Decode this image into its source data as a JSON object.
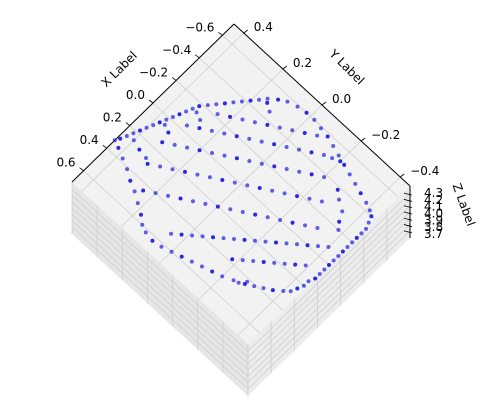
{
  "chart_data": {
    "type": "scatter",
    "projection": "3d",
    "title": "",
    "xlabel": "X Label",
    "ylabel": "Y Label",
    "zlabel": "Z Label",
    "xlim": [
      -0.7,
      0.7
    ],
    "ylim": [
      -0.45,
      0.45
    ],
    "zlim": [
      3.65,
      4.35
    ],
    "x_ticks": [
      "−0.6",
      "−0.4",
      "−0.2",
      "0.0",
      "0.2",
      "0.4",
      "0.6"
    ],
    "x_tick_values": [
      -0.6,
      -0.4,
      -0.2,
      0.0,
      0.2,
      0.4,
      0.6
    ],
    "y_ticks": [
      "0.4",
      "0.2",
      "0.0",
      "−0.2",
      "−0.4"
    ],
    "y_tick_values": [
      0.4,
      0.2,
      0.0,
      -0.2,
      -0.4
    ],
    "z_ticks": [
      "4.3",
      "4.2",
      "4.1",
      "4.0",
      "3.9",
      "3.8",
      "3.7"
    ],
    "z_tick_values": [
      4.3,
      4.2,
      4.1,
      4.0,
      3.9,
      3.8,
      3.7
    ],
    "grid": true,
    "marker_color": "#1f1fe0",
    "series": [
      {
        "points": [
          [
            0.35,
            0.42
          ],
          [
            0.38,
            0.38
          ],
          [
            0.41,
            0.34
          ],
          [
            0.45,
            0.3
          ],
          [
            0.48,
            0.26
          ],
          [
            0.52,
            0.22
          ],
          [
            0.56,
            0.18
          ],
          [
            0.6,
            0.15
          ],
          [
            0.62,
            0.12
          ],
          [
            0.63,
            0.08
          ],
          [
            0.62,
            0.04
          ],
          [
            0.6,
            0.0
          ],
          [
            0.58,
            -0.04
          ],
          [
            0.56,
            -0.08
          ],
          [
            0.54,
            -0.12
          ],
          [
            0.52,
            -0.16
          ],
          [
            0.5,
            -0.2
          ],
          [
            0.47,
            -0.24
          ],
          [
            0.44,
            -0.28
          ],
          [
            0.41,
            -0.31
          ],
          [
            0.38,
            -0.34
          ],
          [
            0.35,
            -0.37
          ],
          [
            0.31,
            -0.4
          ],
          [
            0.33,
            0.45
          ],
          [
            0.3,
            0.44
          ],
          [
            0.26,
            0.43
          ],
          [
            0.22,
            0.42
          ],
          [
            0.18,
            0.41
          ],
          [
            0.14,
            0.4
          ],
          [
            0.1,
            0.39
          ],
          [
            0.06,
            0.38
          ],
          [
            0.02,
            0.37
          ],
          [
            -0.02,
            0.36
          ],
          [
            -0.06,
            0.35
          ],
          [
            -0.1,
            0.34
          ],
          [
            -0.14,
            0.33
          ],
          [
            -0.18,
            0.32
          ],
          [
            -0.22,
            0.3
          ],
          [
            -0.26,
            0.28
          ],
          [
            -0.3,
            0.26
          ],
          [
            -0.34,
            0.24
          ],
          [
            -0.38,
            0.22
          ],
          [
            -0.42,
            0.2
          ],
          [
            -0.46,
            0.18
          ],
          [
            -0.5,
            0.16
          ],
          [
            -0.54,
            0.13
          ],
          [
            -0.57,
            0.1
          ],
          [
            -0.59,
            0.06
          ],
          [
            -0.6,
            0.02
          ],
          [
            -0.6,
            -0.02
          ],
          [
            -0.59,
            -0.06
          ],
          [
            -0.58,
            -0.1
          ],
          [
            -0.56,
            -0.14
          ],
          [
            -0.54,
            -0.18
          ],
          [
            -0.52,
            -0.22
          ],
          [
            -0.5,
            -0.26
          ],
          [
            -0.48,
            -0.3
          ],
          [
            -0.46,
            -0.34
          ],
          [
            -0.44,
            -0.38
          ],
          [
            -0.42,
            -0.41
          ],
          [
            -0.4,
            -0.43
          ],
          [
            -0.36,
            -0.44
          ],
          [
            0.28,
            -0.42
          ],
          [
            0.24,
            -0.43
          ],
          [
            0.2,
            -0.44
          ],
          [
            0.16,
            -0.44
          ],
          [
            0.12,
            -0.45
          ],
          [
            0.08,
            -0.45
          ],
          [
            0.04,
            -0.45
          ],
          [
            0.0,
            -0.45
          ],
          [
            -0.04,
            -0.45
          ],
          [
            -0.08,
            -0.45
          ],
          [
            -0.12,
            -0.45
          ],
          [
            -0.16,
            -0.45
          ],
          [
            -0.2,
            -0.45
          ],
          [
            -0.24,
            -0.45
          ],
          [
            -0.28,
            -0.45
          ],
          [
            -0.32,
            -0.45
          ],
          [
            0.44,
            0.24
          ],
          [
            0.4,
            0.2
          ],
          [
            0.36,
            0.16
          ],
          [
            0.32,
            0.12
          ],
          [
            0.28,
            0.08
          ],
          [
            0.24,
            0.04
          ],
          [
            0.2,
            0.0
          ],
          [
            0.16,
            -0.04
          ],
          [
            0.12,
            -0.08
          ],
          [
            0.08,
            -0.12
          ],
          [
            0.04,
            -0.16
          ],
          [
            0.0,
            -0.2
          ],
          [
            -0.04,
            -0.24
          ],
          [
            -0.08,
            -0.28
          ],
          [
            -0.12,
            -0.32
          ],
          [
            0.3,
            0.3
          ],
          [
            0.26,
            0.26
          ],
          [
            0.22,
            0.22
          ],
          [
            0.18,
            0.18
          ],
          [
            0.14,
            0.14
          ],
          [
            0.1,
            0.1
          ],
          [
            0.06,
            0.06
          ],
          [
            0.02,
            0.02
          ],
          [
            -0.02,
            -0.02
          ],
          [
            -0.06,
            -0.06
          ],
          [
            -0.1,
            -0.1
          ],
          [
            -0.14,
            -0.14
          ],
          [
            -0.18,
            -0.18
          ],
          [
            -0.22,
            -0.22
          ],
          [
            -0.26,
            -0.26
          ],
          [
            0.14,
            0.32
          ],
          [
            0.1,
            0.28
          ],
          [
            0.06,
            0.24
          ],
          [
            0.02,
            0.2
          ],
          [
            -0.02,
            0.16
          ],
          [
            -0.06,
            0.12
          ],
          [
            -0.1,
            0.08
          ],
          [
            -0.14,
            0.04
          ],
          [
            -0.18,
            0.0
          ],
          [
            -0.22,
            -0.04
          ],
          [
            -0.26,
            -0.08
          ],
          [
            -0.3,
            -0.12
          ],
          [
            -0.34,
            -0.16
          ],
          [
            -0.38,
            -0.2
          ],
          [
            -0.04,
            0.3
          ],
          [
            -0.08,
            0.26
          ],
          [
            -0.12,
            0.22
          ],
          [
            -0.16,
            0.18
          ],
          [
            -0.2,
            0.14
          ],
          [
            -0.24,
            0.1
          ],
          [
            -0.28,
            0.06
          ],
          [
            -0.32,
            0.02
          ],
          [
            -0.36,
            -0.02
          ],
          [
            -0.4,
            -0.06
          ],
          [
            -0.44,
            -0.1
          ],
          [
            -0.48,
            -0.14
          ],
          [
            -0.22,
            0.25
          ],
          [
            -0.26,
            0.21
          ],
          [
            -0.3,
            0.17
          ],
          [
            -0.34,
            0.13
          ],
          [
            -0.38,
            0.09
          ],
          [
            -0.42,
            0.05
          ],
          [
            -0.46,
            0.01
          ],
          [
            -0.5,
            -0.03
          ],
          [
            -0.54,
            -0.07
          ],
          [
            0.52,
            0.05
          ],
          [
            0.48,
            0.02
          ],
          [
            0.44,
            -0.01
          ],
          [
            0.4,
            -0.04
          ],
          [
            0.36,
            -0.07
          ],
          [
            0.32,
            -0.1
          ],
          [
            0.28,
            -0.13
          ],
          [
            0.24,
            -0.16
          ],
          [
            0.2,
            -0.19
          ],
          [
            0.16,
            -0.22
          ],
          [
            0.12,
            -0.25
          ],
          [
            0.08,
            -0.28
          ],
          [
            0.04,
            -0.31
          ],
          [
            0.0,
            -0.34
          ],
          [
            -0.04,
            -0.37
          ],
          [
            -0.08,
            -0.4
          ],
          [
            0.38,
            -0.18
          ],
          [
            0.34,
            -0.21
          ],
          [
            0.3,
            -0.24
          ],
          [
            0.26,
            -0.27
          ],
          [
            0.22,
            -0.3
          ],
          [
            0.18,
            -0.33
          ],
          [
            0.14,
            -0.36
          ],
          [
            0.1,
            -0.39
          ],
          [
            0.25,
            0.4
          ],
          [
            0.27,
            0.36
          ],
          [
            0.28,
            0.32
          ],
          [
            0.05,
            0.36
          ],
          [
            0.07,
            0.33
          ],
          [
            -0.14,
            0.31
          ],
          [
            -0.12,
            0.28
          ],
          [
            -0.48,
            0.15
          ],
          [
            -0.45,
            0.12
          ],
          [
            -0.2,
            -0.38
          ],
          [
            -0.24,
            -0.36
          ],
          [
            -0.3,
            -0.34
          ],
          [
            -0.34,
            -0.3
          ],
          [
            -0.38,
            -0.27
          ],
          [
            0.46,
            -0.26
          ],
          [
            0.42,
            -0.28
          ],
          [
            -0.52,
            -0.2
          ],
          [
            -0.5,
            -0.17
          ]
        ]
      }
    ]
  }
}
